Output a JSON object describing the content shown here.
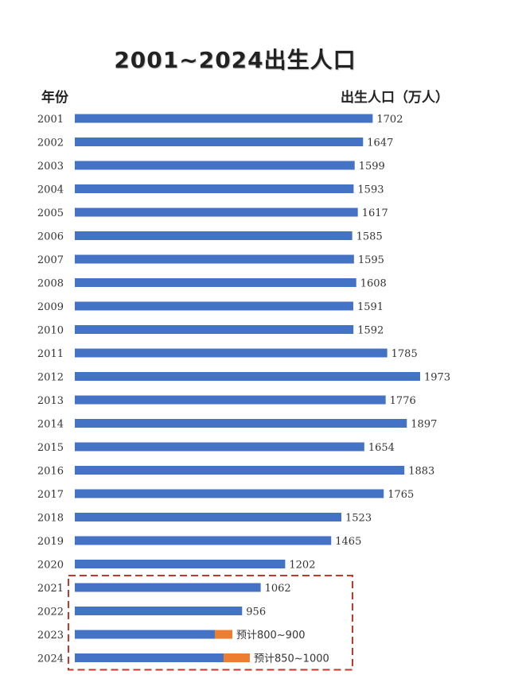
{
  "chart_data": {
    "type": "bar",
    "orientation": "horizontal",
    "title": "2001~2024出生人口",
    "ylabel": "年份",
    "xlabel": "出生人口（万人）",
    "categories": [
      "2001",
      "2002",
      "2003",
      "2004",
      "2005",
      "2006",
      "2007",
      "2008",
      "2009",
      "2010",
      "2011",
      "2012",
      "2013",
      "2014",
      "2015",
      "2016",
      "2017",
      "2018",
      "2019",
      "2020",
      "2021",
      "2022",
      "2023",
      "2024"
    ],
    "values": [
      1702,
      1647,
      1599,
      1593,
      1617,
      1585,
      1595,
      1608,
      1591,
      1592,
      1785,
      1973,
      1776,
      1897,
      1654,
      1883,
      1765,
      1523,
      1465,
      1202,
      1062,
      956,
      null,
      null
    ],
    "value_labels": [
      "1702",
      "1647",
      "1599",
      "1593",
      "1617",
      "1585",
      "1595",
      "1608",
      "1591",
      "1592",
      "1785",
      "1973",
      "1776",
      "1897",
      "1654",
      "1883",
      "1765",
      "1523",
      "1465",
      "1202",
      "1062",
      "956",
      "预计800~900",
      "预计850~1000"
    ],
    "estimates": [
      {
        "category": "2023",
        "low": 800,
        "high": 900
      },
      {
        "category": "2024",
        "low": 850,
        "high": 1000
      }
    ],
    "highlight_range": [
      "2021",
      "2024"
    ],
    "colors": {
      "bar": "#4472C4",
      "estimate": "#ED7D31",
      "highlight_box": "#C0392B"
    }
  }
}
